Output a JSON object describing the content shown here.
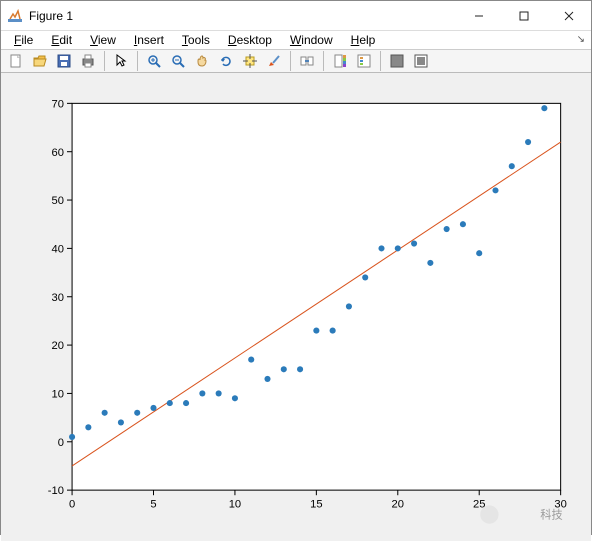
{
  "window": {
    "title": "Figure 1",
    "menus": [
      "File",
      "Edit",
      "View",
      "Insert",
      "Tools",
      "Desktop",
      "Window",
      "Help"
    ]
  },
  "toolbar": {
    "icons": [
      {
        "name": "new-figure-icon",
        "svg": "new"
      },
      {
        "name": "open-icon",
        "svg": "open"
      },
      {
        "name": "save-icon",
        "svg": "save"
      },
      {
        "name": "print-icon",
        "svg": "print"
      },
      {
        "sep": true
      },
      {
        "name": "pointer-icon",
        "svg": "arrow"
      },
      {
        "sep": true
      },
      {
        "name": "zoom-in-icon",
        "svg": "zoomin"
      },
      {
        "name": "zoom-out-icon",
        "svg": "zoomout"
      },
      {
        "name": "pan-icon",
        "svg": "pan"
      },
      {
        "name": "rotate-icon",
        "svg": "rotate"
      },
      {
        "name": "datacursor-icon",
        "svg": "cursor"
      },
      {
        "name": "brush-icon",
        "svg": "brush"
      },
      {
        "sep": true
      },
      {
        "name": "link-icon",
        "svg": "link"
      },
      {
        "sep": true
      },
      {
        "name": "colorbar-icon",
        "svg": "colorbar"
      },
      {
        "name": "legend-icon",
        "svg": "legend"
      },
      {
        "sep": true
      },
      {
        "name": "hideplot-icon",
        "svg": "hide"
      },
      {
        "name": "showplot-icon",
        "svg": "show"
      }
    ]
  },
  "chart": {
    "type": "scatter+line",
    "xlim": [
      0,
      30
    ],
    "ylim": [
      -10,
      70
    ],
    "xticks": [
      0,
      5,
      10,
      15,
      20,
      25,
      30
    ],
    "yticks": [
      -10,
      0,
      10,
      20,
      30,
      40,
      50,
      60,
      70
    ],
    "tick_fontsize": 11,
    "background": "#ffffff",
    "axes_box_color": "#000000",
    "scatter": {
      "x": [
        0,
        1,
        2,
        3,
        4,
        5,
        6,
        7,
        8,
        9,
        10,
        11,
        12,
        13,
        14,
        15,
        16,
        17,
        18,
        19,
        20,
        21,
        22,
        23,
        24,
        25,
        26,
        27,
        28,
        29
      ],
      "y": [
        1,
        3,
        6,
        4,
        6,
        7,
        8,
        8,
        10,
        10,
        9,
        17,
        13,
        15,
        15,
        23,
        23,
        28,
        34,
        40,
        40,
        41,
        37,
        44,
        45,
        39,
        52,
        57,
        62,
        69
      ],
      "color": "#2b7bba",
      "marker_size": 4
    },
    "line": {
      "x": [
        0,
        30
      ],
      "y": [
        -5,
        62
      ],
      "color": "#d9541e",
      "width": 1
    },
    "plot_area_bg": "#ffffff",
    "figure_bg": "#f0f0f0"
  },
  "watermark": "科技"
}
